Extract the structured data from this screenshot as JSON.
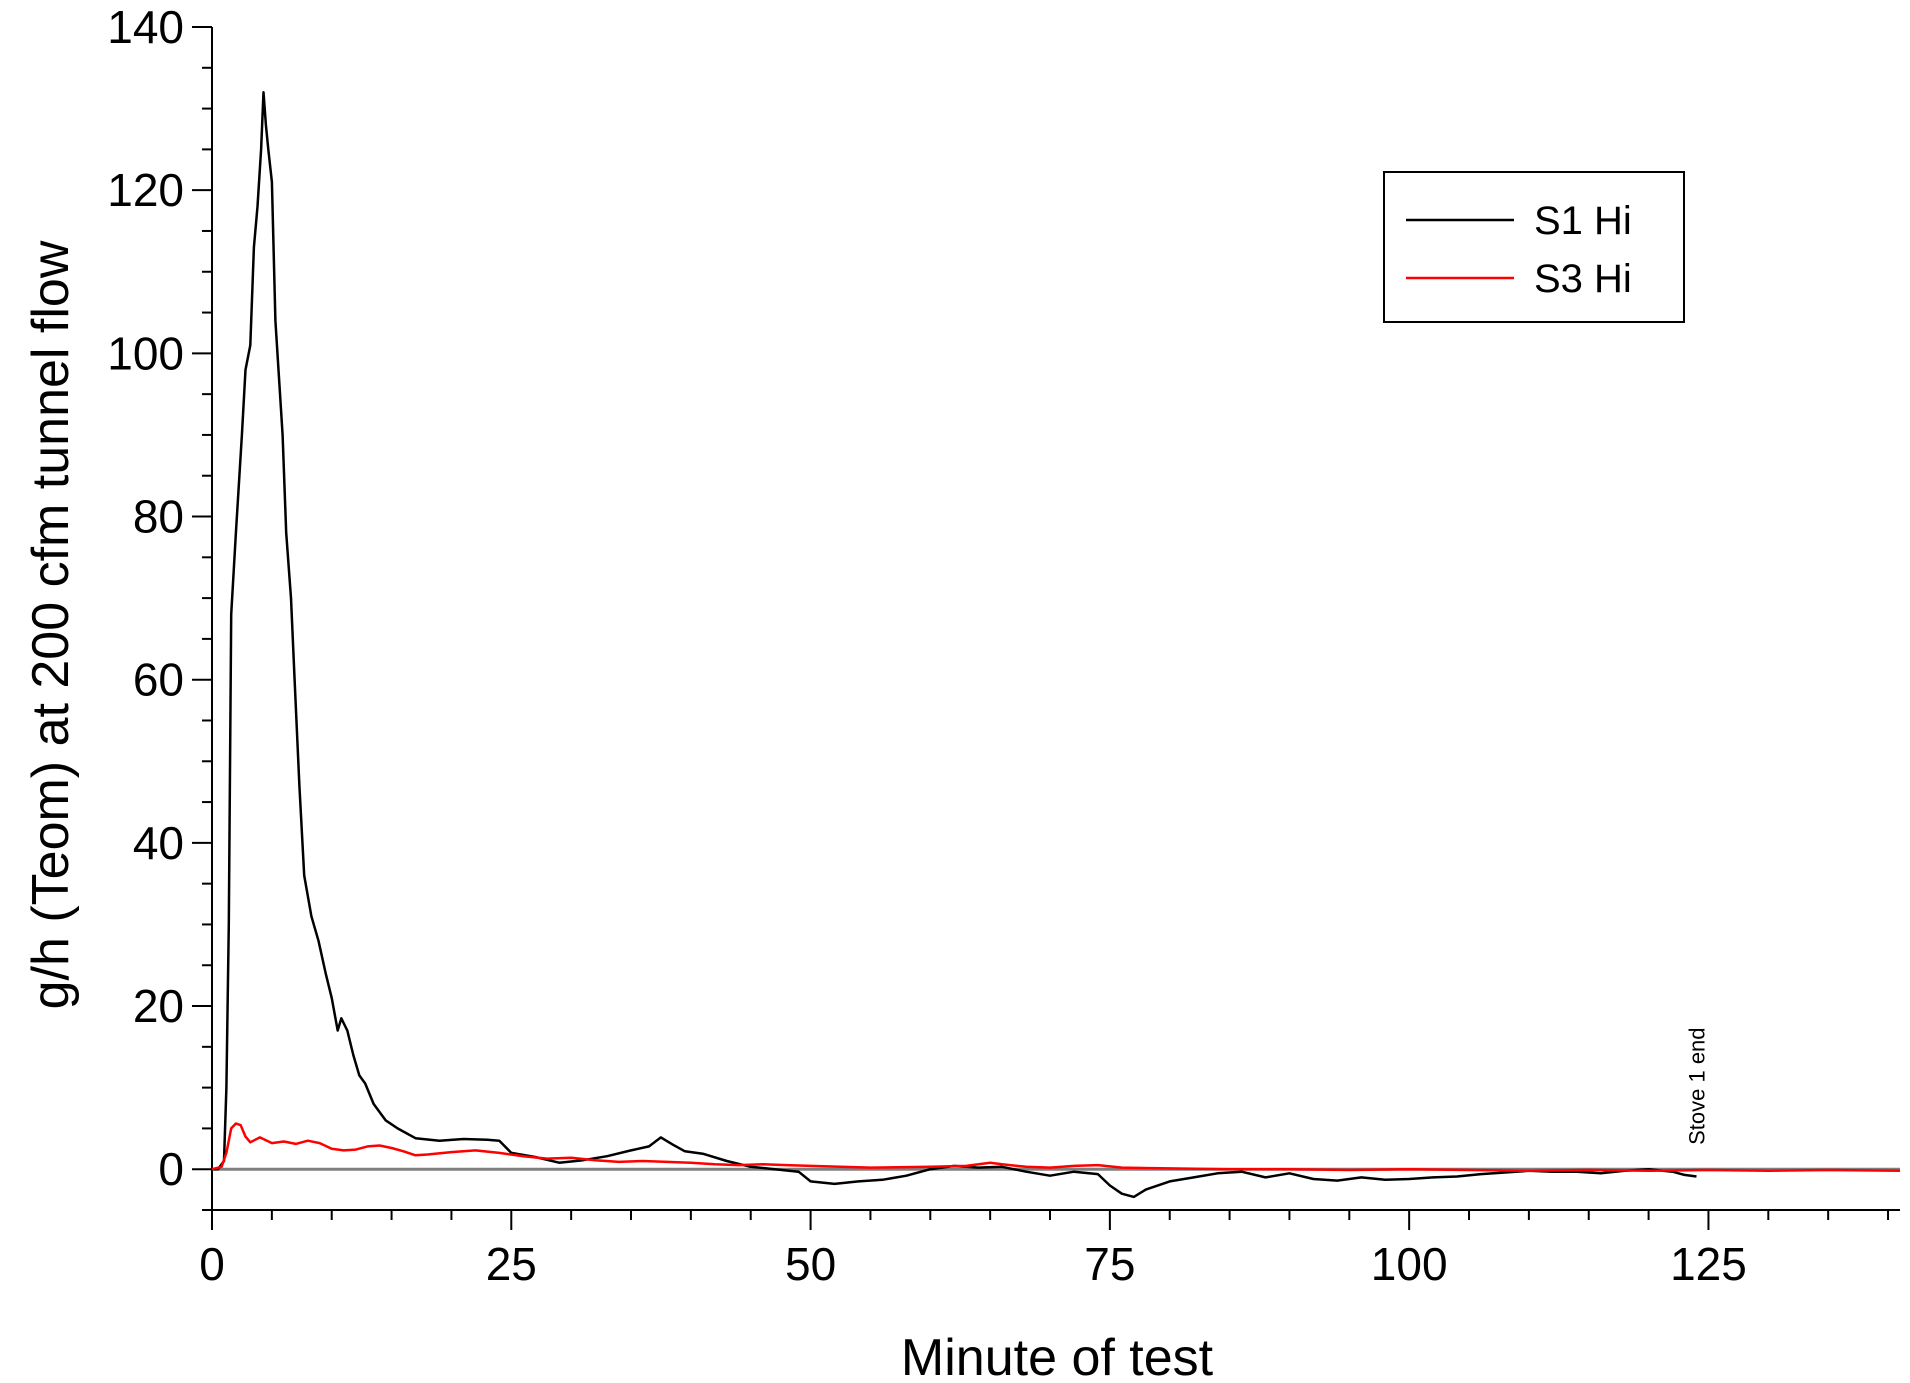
{
  "chart_data": {
    "type": "line",
    "xlabel": "Minute of test",
    "ylabel": "g/h (Teom) at 200 cfm tunnel flow",
    "xlim": [
      0,
      141
    ],
    "ylim": [
      -5,
      140
    ],
    "xticks": [
      0,
      25,
      50,
      75,
      100,
      125
    ],
    "yticks": [
      0,
      20,
      40,
      60,
      80,
      100,
      120,
      140
    ],
    "grid": false,
    "legend_position": "top-right",
    "reference_line": {
      "y": 0,
      "color": "#808080"
    },
    "series": [
      {
        "name": "S1 Hi",
        "color": "#000000",
        "points": [
          [
            0,
            0
          ],
          [
            0.5,
            0
          ],
          [
            1,
            1
          ],
          [
            1.2,
            10
          ],
          [
            1.4,
            30
          ],
          [
            1.6,
            68
          ],
          [
            2,
            78
          ],
          [
            2.5,
            90
          ],
          [
            2.8,
            98
          ],
          [
            3.2,
            101
          ],
          [
            3.5,
            113
          ],
          [
            3.8,
            118
          ],
          [
            4.1,
            125
          ],
          [
            4.3,
            132
          ],
          [
            4.5,
            128
          ],
          [
            4.7,
            125
          ],
          [
            5,
            121
          ],
          [
            5.3,
            104
          ],
          [
            5.6,
            97
          ],
          [
            5.9,
            90
          ],
          [
            6.2,
            78
          ],
          [
            6.6,
            70
          ],
          [
            6.9,
            60
          ],
          [
            7.3,
            47
          ],
          [
            7.7,
            36
          ],
          [
            8.3,
            31
          ],
          [
            8.9,
            28
          ],
          [
            9.5,
            24
          ],
          [
            10,
            21
          ],
          [
            10.5,
            17
          ],
          [
            10.8,
            18.5
          ],
          [
            11.3,
            17
          ],
          [
            11.8,
            14
          ],
          [
            12.3,
            11.5
          ],
          [
            12.8,
            10.5
          ],
          [
            13.5,
            8
          ],
          [
            14.5,
            6
          ],
          [
            15.5,
            5
          ],
          [
            17,
            3.8
          ],
          [
            19,
            3.5
          ],
          [
            21,
            3.7
          ],
          [
            23,
            3.6
          ],
          [
            24,
            3.5
          ],
          [
            25,
            2
          ],
          [
            27,
            1.5
          ],
          [
            29,
            0.8
          ],
          [
            31,
            1.1
          ],
          [
            33,
            1.6
          ],
          [
            35,
            2.3
          ],
          [
            36.5,
            2.8
          ],
          [
            37.5,
            3.9
          ],
          [
            38.5,
            3
          ],
          [
            39.5,
            2.2
          ],
          [
            41,
            1.9
          ],
          [
            43,
            1
          ],
          [
            45,
            0.3
          ],
          [
            47,
            0
          ],
          [
            49,
            -0.3
          ],
          [
            50,
            -1.5
          ],
          [
            52,
            -1.8
          ],
          [
            54,
            -1.5
          ],
          [
            56,
            -1.3
          ],
          [
            58,
            -0.8
          ],
          [
            60,
            0
          ],
          [
            62,
            0.4
          ],
          [
            64,
            0.2
          ],
          [
            66,
            0.3
          ],
          [
            68,
            -0.3
          ],
          [
            70,
            -0.8
          ],
          [
            72,
            -0.3
          ],
          [
            74,
            -0.6
          ],
          [
            75,
            -2
          ],
          [
            76,
            -3
          ],
          [
            77,
            -3.4
          ],
          [
            78,
            -2.5
          ],
          [
            80,
            -1.5
          ],
          [
            82,
            -1
          ],
          [
            84,
            -0.5
          ],
          [
            86,
            -0.3
          ],
          [
            88,
            -1
          ],
          [
            90,
            -0.5
          ],
          [
            92,
            -1.2
          ],
          [
            94,
            -1.4
          ],
          [
            96,
            -1
          ],
          [
            98,
            -1.3
          ],
          [
            100,
            -1.2
          ],
          [
            102,
            -1
          ],
          [
            104,
            -0.9
          ],
          [
            106,
            -0.6
          ],
          [
            108,
            -0.4
          ],
          [
            110,
            -0.2
          ],
          [
            112,
            -0.3
          ],
          [
            114,
            -0.3
          ],
          [
            116,
            -0.5
          ],
          [
            118,
            -0.2
          ],
          [
            120,
            0
          ],
          [
            122,
            -0.3
          ],
          [
            123,
            -0.7
          ],
          [
            124,
            -0.9
          ]
        ]
      },
      {
        "name": "S3 Hi",
        "color": "#ff0000",
        "points": [
          [
            0,
            0
          ],
          [
            0.8,
            0.3
          ],
          [
            1.2,
            2
          ],
          [
            1.6,
            5
          ],
          [
            2,
            5.6
          ],
          [
            2.4,
            5.4
          ],
          [
            2.8,
            4
          ],
          [
            3.2,
            3.3
          ],
          [
            3.6,
            3.6
          ],
          [
            4,
            3.9
          ],
          [
            5,
            3.2
          ],
          [
            6,
            3.4
          ],
          [
            7,
            3.1
          ],
          [
            8,
            3.5
          ],
          [
            9,
            3.2
          ],
          [
            10,
            2.5
          ],
          [
            11,
            2.3
          ],
          [
            12,
            2.4
          ],
          [
            13,
            2.8
          ],
          [
            14,
            2.9
          ],
          [
            15,
            2.6
          ],
          [
            16,
            2.2
          ],
          [
            17,
            1.7
          ],
          [
            18,
            1.8
          ],
          [
            20,
            2.1
          ],
          [
            22,
            2.3
          ],
          [
            24,
            2
          ],
          [
            26,
            1.6
          ],
          [
            28,
            1.3
          ],
          [
            30,
            1.4
          ],
          [
            32,
            1.1
          ],
          [
            34,
            0.9
          ],
          [
            36,
            1
          ],
          [
            38,
            0.9
          ],
          [
            40,
            0.8
          ],
          [
            42,
            0.6
          ],
          [
            44,
            0.5
          ],
          [
            46,
            0.6
          ],
          [
            48,
            0.5
          ],
          [
            50,
            0.4
          ],
          [
            55,
            0.2
          ],
          [
            60,
            0.3
          ],
          [
            63,
            0.4
          ],
          [
            65,
            0.8
          ],
          [
            66,
            0.6
          ],
          [
            68,
            0.3
          ],
          [
            70,
            0.2
          ],
          [
            72,
            0.4
          ],
          [
            74,
            0.5
          ],
          [
            76,
            0.2
          ],
          [
            80,
            0.1
          ],
          [
            85,
            0
          ],
          [
            90,
            0
          ],
          [
            95,
            -0.1
          ],
          [
            100,
            0
          ],
          [
            105,
            -0.1
          ],
          [
            110,
            -0.2
          ],
          [
            115,
            -0.1
          ],
          [
            120,
            -0.2
          ],
          [
            125,
            -0.1
          ],
          [
            130,
            -0.2
          ],
          [
            135,
            -0.1
          ],
          [
            141,
            -0.2
          ]
        ]
      }
    ],
    "annotations": [
      {
        "text": "Stove 1 end",
        "x": 124,
        "y": 2
      }
    ]
  }
}
